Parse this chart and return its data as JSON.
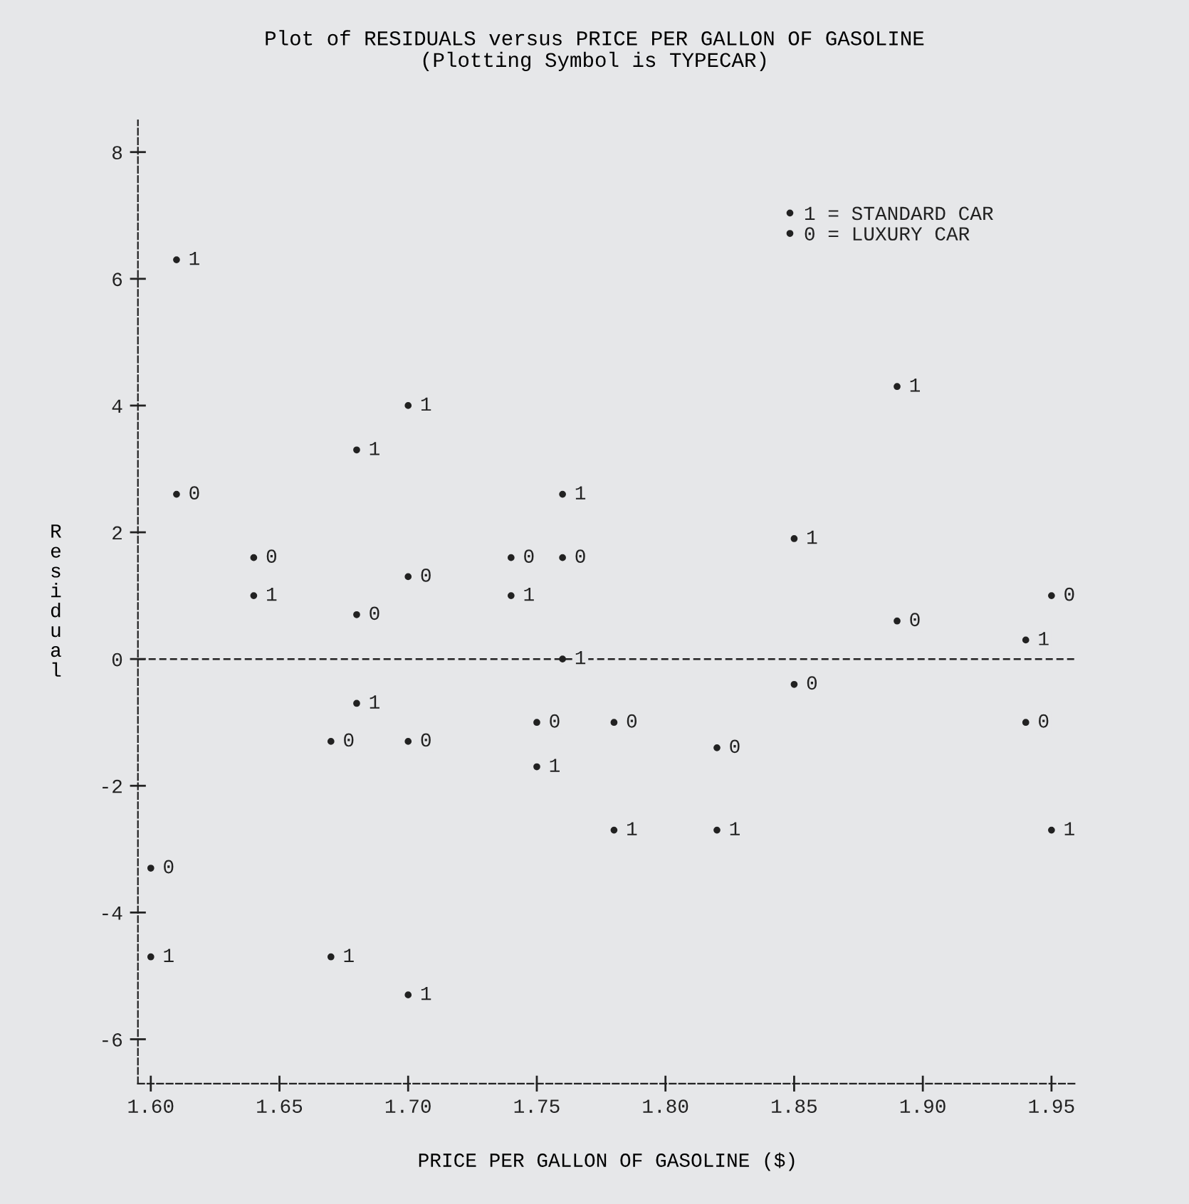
{
  "chart_data": {
    "type": "scatter",
    "title": "Plot of RESIDUALS versus PRICE PER GALLON OF GASOLINE",
    "subtitle": "(Plotting Symbol is TYPECAR)",
    "xlabel": "PRICE PER GALLON OF GASOLINE ($)",
    "ylabel": "Residual",
    "xlim": [
      1.595,
      1.96
    ],
    "ylim": [
      -6.7,
      8.5
    ],
    "xticks": [
      {
        "value": 1.6,
        "label": "1.60"
      },
      {
        "value": 1.65,
        "label": "1.65"
      },
      {
        "value": 1.7,
        "label": "1.70"
      },
      {
        "value": 1.75,
        "label": "1.75"
      },
      {
        "value": 1.8,
        "label": "1.80"
      },
      {
        "value": 1.85,
        "label": "1.85"
      },
      {
        "value": 1.9,
        "label": "1.90"
      },
      {
        "value": 1.95,
        "label": "1.95"
      }
    ],
    "yticks": [
      -6,
      -4,
      -2,
      0,
      2,
      4,
      6,
      8
    ],
    "grid": false,
    "legend": "top right",
    "line_style": "dashed",
    "marker": "circle",
    "ref_lines": [
      {
        "axis": "y",
        "value": 0,
        "color": "#222222",
        "line_style": "dashed"
      }
    ],
    "series": [
      {
        "name": "1 = STANDARD CAR",
        "color": "#222222",
        "x": [
          1.61,
          1.64,
          1.68,
          1.7,
          1.76,
          1.74,
          1.76,
          1.68,
          1.75,
          1.78,
          1.6,
          1.67,
          1.7,
          1.89,
          1.85,
          1.94,
          1.82,
          1.95
        ],
        "values": [
          6.3,
          1.0,
          3.3,
          4.0,
          2.6,
          1.0,
          0.0,
          -0.7,
          -1.7,
          -2.7,
          -4.7,
          -4.7,
          -5.3,
          4.3,
          1.9,
          0.3,
          -2.7,
          -2.7
        ]
      },
      {
        "name": "0 = LUXURY CAR",
        "color": "#222222",
        "x": [
          1.61,
          1.64,
          1.7,
          1.68,
          1.74,
          1.76,
          1.67,
          1.7,
          1.75,
          1.78,
          1.6,
          1.95,
          1.89,
          1.85,
          1.94,
          1.82
        ],
        "values": [
          2.6,
          1.6,
          1.3,
          0.7,
          1.6,
          1.6,
          -1.3,
          -1.3,
          -1.0,
          -1.0,
          -3.3,
          1.0,
          0.6,
          -0.4,
          -1.0,
          -1.4
        ]
      }
    ],
    "annotations": [
      {
        "text": "1",
        "x": 1.61,
        "y": 6.3
      },
      {
        "text": "1",
        "x": 1.64,
        "y": 1.0
      },
      {
        "text": "1",
        "x": 1.68,
        "y": 3.3
      },
      {
        "text": "1",
        "x": 1.7,
        "y": 4.0
      },
      {
        "text": "1",
        "x": 1.76,
        "y": 2.6
      },
      {
        "text": "1",
        "x": 1.74,
        "y": 1.0
      },
      {
        "text": "1",
        "x": 1.76,
        "y": 0.0
      },
      {
        "text": "1",
        "x": 1.68,
        "y": -0.7
      },
      {
        "text": "1",
        "x": 1.75,
        "y": -1.7
      },
      {
        "text": "1",
        "x": 1.78,
        "y": -2.7
      },
      {
        "text": "1",
        "x": 1.6,
        "y": -4.7
      },
      {
        "text": "1",
        "x": 1.67,
        "y": -4.7
      },
      {
        "text": "1",
        "x": 1.7,
        "y": -5.3
      },
      {
        "text": "1",
        "x": 1.89,
        "y": 4.3
      },
      {
        "text": "1",
        "x": 1.85,
        "y": 1.9
      },
      {
        "text": "1",
        "x": 1.94,
        "y": 0.3
      },
      {
        "text": "1",
        "x": 1.82,
        "y": -2.7
      },
      {
        "text": "1",
        "x": 1.95,
        "y": -2.7
      },
      {
        "text": "0",
        "x": 1.61,
        "y": 2.6
      },
      {
        "text": "0",
        "x": 1.64,
        "y": 1.6
      },
      {
        "text": "0",
        "x": 1.7,
        "y": 1.3
      },
      {
        "text": "0",
        "x": 1.68,
        "y": 0.7
      },
      {
        "text": "0",
        "x": 1.74,
        "y": 1.6
      },
      {
        "text": "0",
        "x": 1.76,
        "y": 1.6
      },
      {
        "text": "0",
        "x": 1.67,
        "y": -1.3
      },
      {
        "text": "0",
        "x": 1.7,
        "y": -1.3
      },
      {
        "text": "0",
        "x": 1.75,
        "y": -1.0
      },
      {
        "text": "0",
        "x": 1.78,
        "y": -1.0
      },
      {
        "text": "0",
        "x": 1.6,
        "y": -3.3
      },
      {
        "text": "0",
        "x": 1.95,
        "y": 1.0
      },
      {
        "text": "0",
        "x": 1.89,
        "y": 0.6
      },
      {
        "text": "0",
        "x": 1.85,
        "y": -0.4
      },
      {
        "text": "0",
        "x": 1.94,
        "y": -1.0
      },
      {
        "text": "0",
        "x": 1.82,
        "y": -1.4
      }
    ]
  }
}
